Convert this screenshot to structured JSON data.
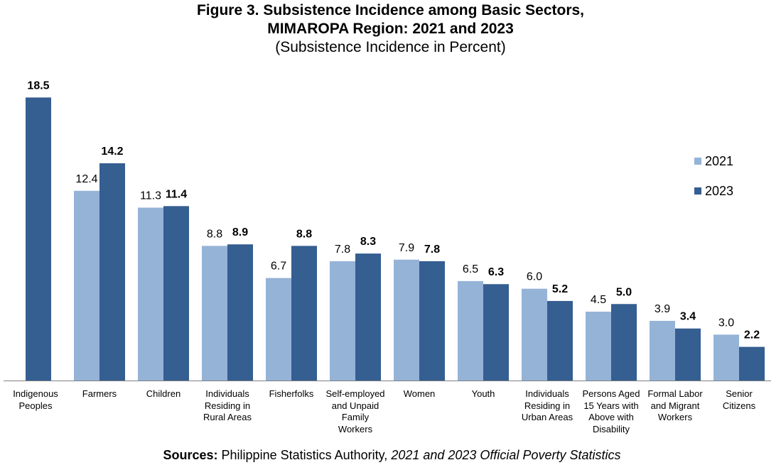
{
  "title": {
    "line1": "Figure 3. Subsistence Incidence among Basic Sectors,",
    "line2": "MIMAROPA Region: 2021 and 2023",
    "line3": "(Subsistence Incidence in Percent)"
  },
  "source": {
    "label": "Sources:",
    "text": "Philippine Statistics Authority, ",
    "italic": "2021 and 2023 Official Poverty Statistics"
  },
  "colors": {
    "series_2021": "#95B3D7",
    "series_2023": "#355E91"
  },
  "chart_data": {
    "type": "bar",
    "categories": [
      "Indigenous Peoples",
      "Farmers",
      "Children",
      "Individuals Residing in Rural Areas",
      "Fisherfolks",
      "Self-employed and Unpaid Family Workers",
      "Women",
      "Youth",
      "Individuals Residing in Urban Areas",
      "Persons Aged 15 Years with Above with Disability",
      "Formal Labor and Migrant Workers",
      "Senior Citizens"
    ],
    "category_lines": [
      [
        "Indigenous",
        "Peoples"
      ],
      [
        "Farmers"
      ],
      [
        "Children"
      ],
      [
        "Individuals",
        "Residing in",
        "Rural Areas"
      ],
      [
        "Fisherfolks"
      ],
      [
        "Self-employed",
        "and Unpaid",
        "Family",
        "Workers"
      ],
      [
        "Women"
      ],
      [
        "Youth"
      ],
      [
        "Individuals",
        "Residing in",
        "Urban Areas"
      ],
      [
        "Persons Aged",
        "15 Years with",
        "Above with",
        "Disability"
      ],
      [
        "Formal Labor",
        "and Migrant",
        "Workers"
      ],
      [
        "Senior",
        "Citizens"
      ]
    ],
    "series": [
      {
        "name": "2021",
        "values": [
          null,
          12.4,
          11.3,
          8.8,
          6.7,
          7.8,
          7.9,
          6.5,
          6.0,
          4.5,
          3.9,
          3.0
        ],
        "labels": [
          "",
          "12.4",
          "11.3",
          "8.8",
          "6.7",
          "7.8",
          "7.9",
          "6.5",
          "6.0",
          "4.5",
          "3.9",
          "3.0"
        ]
      },
      {
        "name": "2023",
        "values": [
          18.5,
          14.2,
          11.4,
          8.9,
          8.8,
          8.3,
          7.8,
          6.3,
          5.2,
          5.0,
          3.4,
          2.2
        ],
        "labels": [
          "18.5",
          "14.2",
          "11.4",
          "8.9",
          "8.8",
          "8.3",
          "7.8",
          "6.3",
          "5.2",
          "5.0",
          "3.4",
          "2.2"
        ]
      }
    ],
    "ylim": [
      0,
      20
    ],
    "grid": false,
    "legend": "right",
    "xlabel": "",
    "ylabel": ""
  }
}
